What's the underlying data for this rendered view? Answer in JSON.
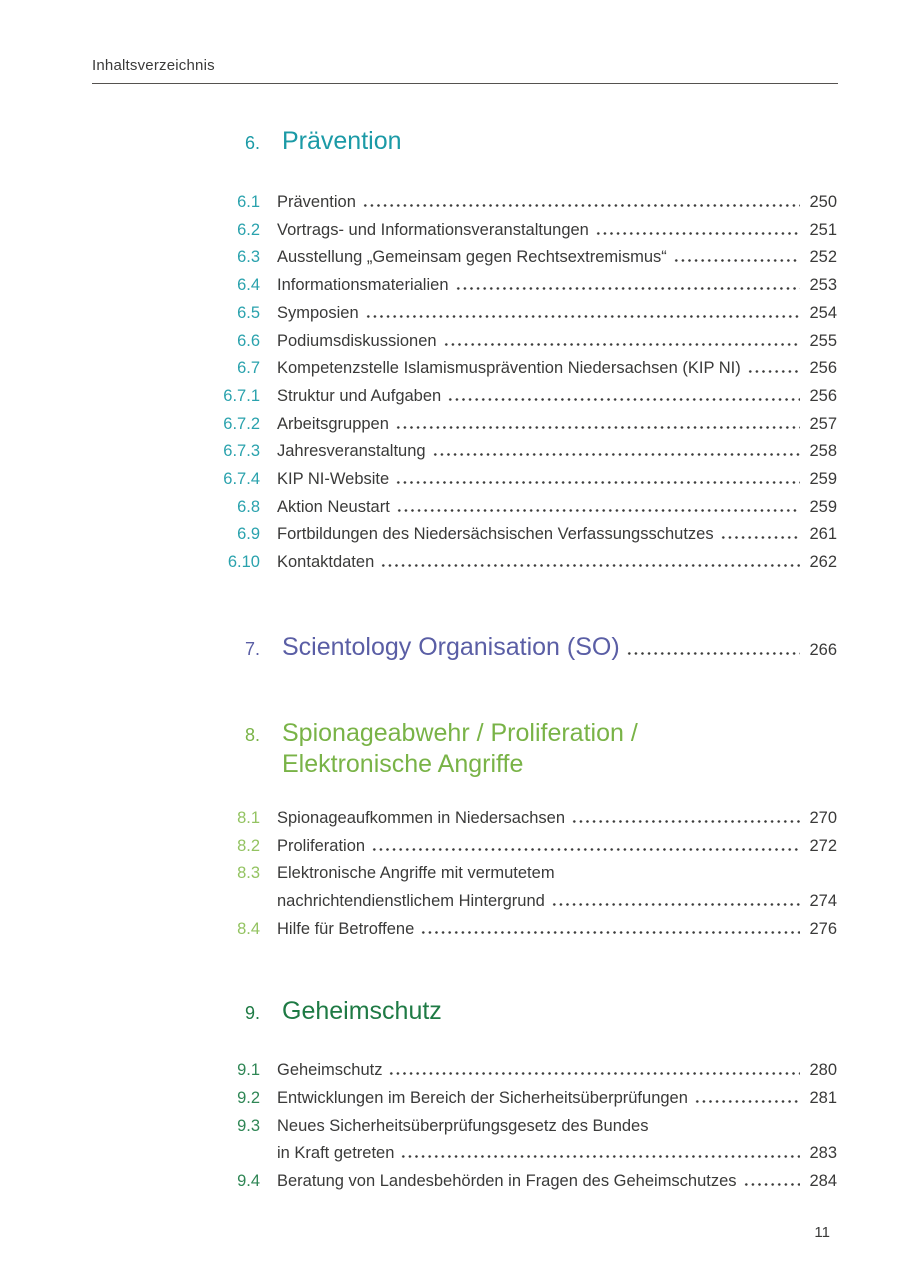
{
  "header": {
    "title": "Inhaltsverzeichnis"
  },
  "footer": {
    "page_number": "11"
  },
  "colors": {
    "section6": "#1b9aa6",
    "section6_item": "#2aa2ad",
    "section7": "#5a5ea5",
    "section8": "#79b347",
    "section8_item": "#93c361",
    "section9": "#1e7a44",
    "section9_item": "#2f8655",
    "body_text": "#3a3a39"
  },
  "sections": [
    {
      "number": "6.",
      "title": "Prävention",
      "items": [
        {
          "num": "6.1",
          "label": "Prävention",
          "page": "250"
        },
        {
          "num": "6.2",
          "label": "Vortrags- und Informationsveranstaltungen",
          "page": "251"
        },
        {
          "num": "6.3",
          "label": "Ausstellung „Gemeinsam gegen Rechtsextremismus“",
          "page": "252"
        },
        {
          "num": "6.4",
          "label": "Informationsmaterialien",
          "page": "253"
        },
        {
          "num": "6.5",
          "label": "Symposien",
          "page": "254"
        },
        {
          "num": "6.6",
          "label": "Podiumsdiskussionen",
          "page": "255"
        },
        {
          "num": "6.7",
          "label": "Kompetenzstelle Islamismusprävention Niedersachsen (KIP NI)",
          "page": "256"
        },
        {
          "num": "6.7.1",
          "label": "Struktur und Aufgaben",
          "page": "256"
        },
        {
          "num": "6.7.2",
          "label": "Arbeitsgruppen",
          "page": "257"
        },
        {
          "num": "6.7.3",
          "label": "Jahresveranstaltung",
          "page": "258"
        },
        {
          "num": "6.7.4",
          "label": "KIP NI-Website",
          "page": "259"
        },
        {
          "num": "6.8",
          "label": "Aktion Neustart",
          "page": "259"
        },
        {
          "num": "6.9",
          "label": "Fortbildungen des Niedersächsischen Verfassungsschutzes",
          "page": "261"
        },
        {
          "num": "6.10",
          "label": "Kontaktdaten",
          "page": "262"
        }
      ]
    },
    {
      "number": "7.",
      "title": "Scientology Organisation (SO)",
      "page": "266",
      "items": []
    },
    {
      "number": "8.",
      "title_line1": "Spionageabwehr / Proliferation /",
      "title_line2": "Elektronische Angriffe",
      "items": [
        {
          "num": "8.1",
          "label": "Spionageaufkommen in Niedersachsen",
          "page": "270"
        },
        {
          "num": "8.2",
          "label": "Proliferation",
          "page": "272"
        },
        {
          "num": "8.3",
          "label": "Elektronische Angriffe mit vermutetem",
          "label2": "nachrichtendienstlichem Hintergrund",
          "page": "274"
        },
        {
          "num": "8.4",
          "label": "Hilfe für Betroffene",
          "page": "276"
        }
      ]
    },
    {
      "number": "9.",
      "title": "Geheimschutz",
      "items": [
        {
          "num": "9.1",
          "label": "Geheimschutz",
          "page": "280"
        },
        {
          "num": "9.2",
          "label": "Entwicklungen im Bereich der Sicherheitsüberprüfungen",
          "page": "281"
        },
        {
          "num": "9.3",
          "label": "Neues Sicherheitsüberprüfungsgesetz des Bundes",
          "label2": "in Kraft getreten",
          "page": "283"
        },
        {
          "num": "9.4",
          "label": "Beratung von Landesbehörden in Fragen des Geheimschutzes",
          "page": "284"
        }
      ]
    }
  ]
}
